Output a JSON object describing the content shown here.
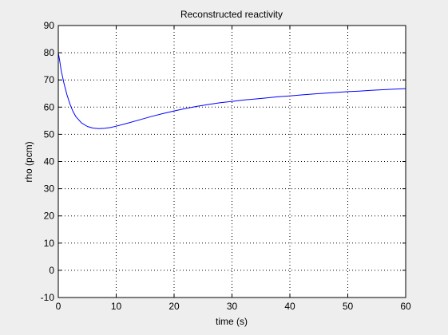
{
  "figure": {
    "background": "#eeeeee",
    "axes_background": "#ffffff",
    "line_color": "#0000ff"
  },
  "chart_data": {
    "type": "line",
    "title": "Reconstructed reactivity",
    "xlabel": "time (s)",
    "ylabel": "rho (pcm)",
    "xlim": [
      0,
      60
    ],
    "ylim": [
      -10,
      90
    ],
    "xticks": [
      0,
      10,
      20,
      30,
      40,
      50,
      60
    ],
    "yticks": [
      -10,
      0,
      10,
      20,
      30,
      40,
      50,
      60,
      70,
      80,
      90
    ],
    "grid": true,
    "grid_style": "dotted",
    "legend": "none",
    "series": [
      {
        "color": "#0000ff",
        "x": [
          0,
          0.2,
          0.5,
          1,
          1.5,
          2,
          2.5,
          3,
          4,
          5,
          6,
          7,
          8,
          9,
          10,
          12,
          14,
          16,
          18,
          20,
          22,
          24,
          26,
          28,
          30,
          32,
          34,
          36,
          38,
          40,
          42,
          44,
          46,
          48,
          50,
          52,
          54,
          56,
          58,
          60
        ],
        "y": [
          80,
          77.5,
          73.5,
          68.5,
          64.5,
          61.2,
          58.6,
          56.6,
          54.2,
          52.9,
          52.3,
          52.1,
          52.2,
          52.5,
          53.0,
          54.1,
          55.3,
          56.5,
          57.6,
          58.6,
          59.5,
          60.3,
          61.0,
          61.6,
          62.1,
          62.6,
          63.0,
          63.4,
          63.8,
          64.1,
          64.5,
          64.8,
          65.1,
          65.4,
          65.7,
          65.9,
          66.2,
          66.4,
          66.6,
          66.8
        ]
      }
    ]
  }
}
